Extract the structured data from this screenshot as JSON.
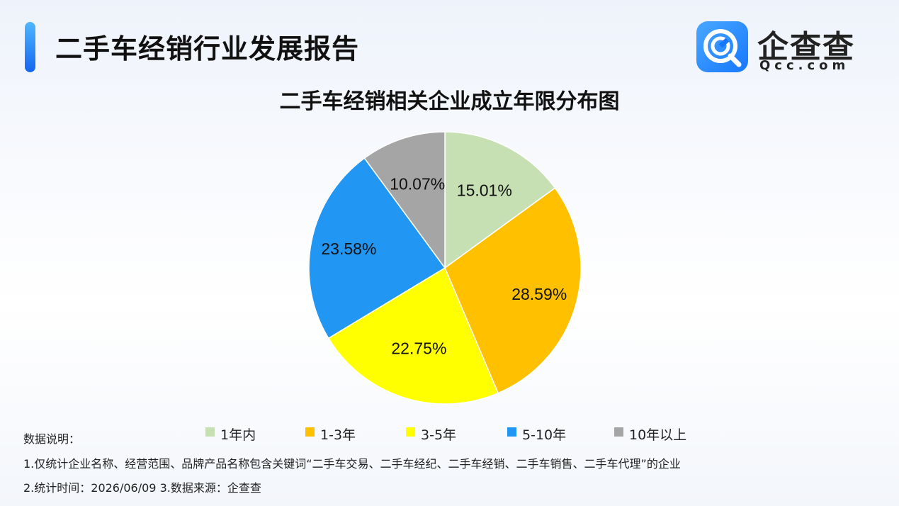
{
  "header": {
    "report_title": "二手车经销行业发展报告"
  },
  "logo": {
    "name_cn": "企查查",
    "name_en": "Qcc.com",
    "icon": "qcc-logo-icon",
    "brand_color": "#1677ff"
  },
  "chart_data": {
    "type": "pie",
    "title": "二手车经销相关企业成立年限分布图",
    "categories": [
      "1年内",
      "1-3年",
      "3-5年",
      "5-10年",
      "10年以上"
    ],
    "values": [
      15.01,
      28.59,
      22.75,
      23.58,
      10.07
    ],
    "data_labels": [
      "15.01%",
      "28.59%",
      "22.75%",
      "23.58%",
      "10.07%"
    ],
    "colors": [
      "#c6e0b4",
      "#ffc000",
      "#ffff00",
      "#2196f3",
      "#a5a5a5"
    ],
    "start_angle_deg": 0,
    "direction": "clockwise",
    "legend_position": "bottom"
  },
  "notes": {
    "heading": "数据说明：",
    "line1": "1.仅统计企业名称、经营范围、品牌产品名称包含关键词“二手车交易、二手车经纪、二手车经销、二手车销售、二手车代理”的企业",
    "line2": "2.统计时间：2026/06/09    3.数据来源：企查查"
  }
}
